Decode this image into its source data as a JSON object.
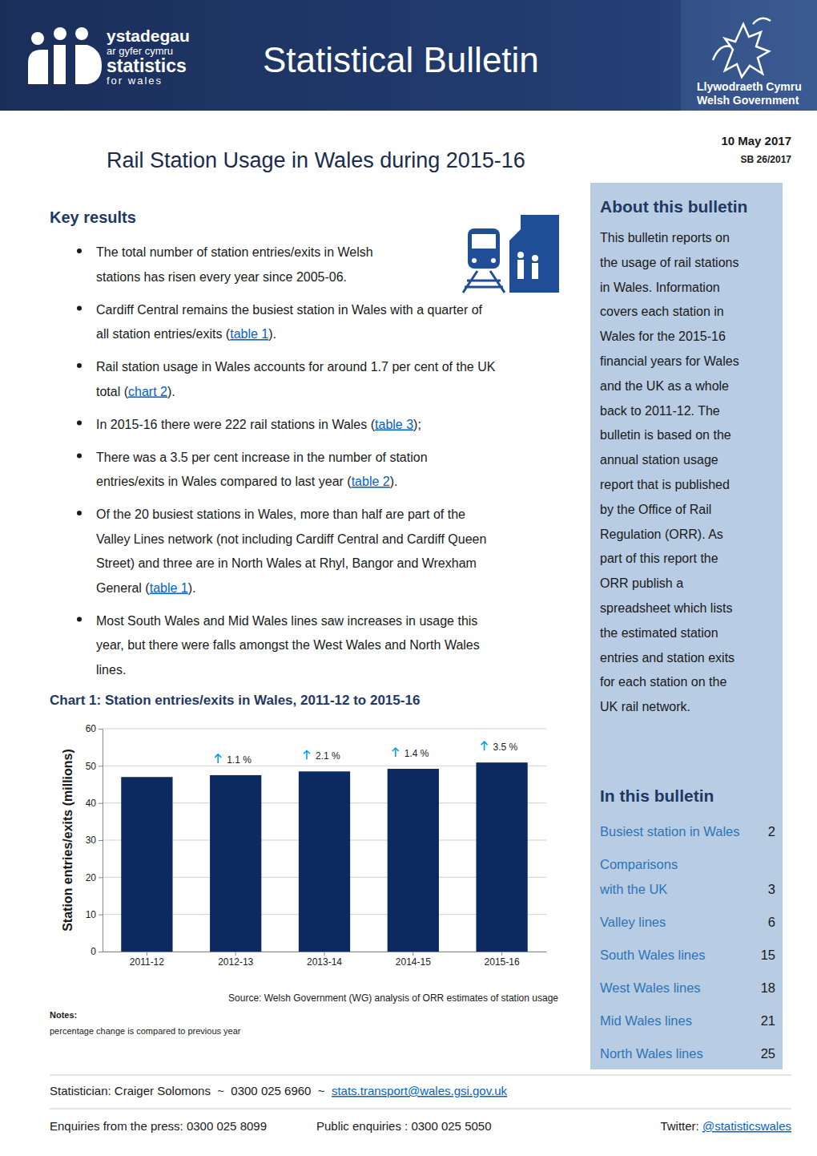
{
  "header": {
    "logo_lines": [
      "ystadegau",
      "ar gyfer cymru",
      "statistics",
      "for wales"
    ],
    "title": "Statistical Bulletin",
    "government": [
      "Llywodraeth Cymru",
      "Welsh Government"
    ]
  },
  "date": "10 May 2017",
  "reference": "SB 26/2017",
  "title": "Rail Station Usage in Wales during 2015-16",
  "key_results": {
    "heading": "Key results",
    "bullets": [
      [
        "The total number of station entries/exits in Welsh",
        "stations has risen every year since 2005-06."
      ],
      [
        "Cardiff Central remains the busiest station in Wales with a quarter of",
        [
          {
            "text": "all station entries/exits ("
          },
          {
            "link": "table 1"
          },
          {
            "text": ")."
          }
        ]
      ],
      [
        "Rail station usage in Wales accounts for around 1.7 per cent of the UK",
        [
          {
            "text": "total ("
          },
          {
            "link": "chart 2"
          },
          {
            "text": ")."
          }
        ]
      ],
      [
        [
          {
            "text": "In 2015-16 there were 222 rail stations in Wales ("
          },
          {
            "link": "table 3"
          },
          {
            "text": ");"
          }
        ]
      ],
      [
        "There was a 3.5 per cent increase in the number of station",
        [
          {
            "text": "entries/exits in Wales compared to last year ("
          },
          {
            "link": "table 2"
          },
          {
            "text": ")."
          }
        ]
      ],
      [
        "Of the 20 busiest stations in Wales, more than half are part of the",
        "Valley Lines network (not including Cardiff Central and Cardiff Queen",
        "Street) and three are in North Wales at Rhyl, Bangor and Wrexham",
        [
          {
            "text": "General ("
          },
          {
            "link": "table 1"
          },
          {
            "text": ")."
          }
        ]
      ],
      [
        "Most South Wales and Mid Wales lines saw increases in usage this",
        "year, but there were falls amongst the West Wales and North Wales",
        "lines."
      ]
    ]
  },
  "about": {
    "heading": "About this bulletin",
    "lines": [
      "This bulletin reports on",
      "the usage of rail stations",
      "in Wales. Information",
      "covers each station in",
      "Wales for the 2015-16",
      "financial years for Wales",
      "and the UK as a whole",
      "back to 2011-12. The",
      "bulletin is based on the",
      "annual station usage",
      "report that is published",
      "by the Office of Rail",
      "Regulation (ORR). As",
      "part of this report the",
      "ORR publish a",
      "spreadsheet which lists",
      "the estimated station",
      "entries and station exits",
      "for each station on the",
      "UK rail network."
    ]
  },
  "contents": {
    "heading": "In this bulletin",
    "items": [
      {
        "lines": [
          "Busiest station in Wales"
        ],
        "page": 2
      },
      {
        "lines": [
          "Comparisons",
          "with the UK"
        ],
        "page": 3
      },
      {
        "lines": [
          "Valley lines"
        ],
        "page": 6
      },
      {
        "lines": [
          "South Wales lines"
        ],
        "page": 15
      },
      {
        "lines": [
          "West Wales lines"
        ],
        "page": 18
      },
      {
        "lines": [
          "Mid Wales lines"
        ],
        "page": 21
      },
      {
        "lines": [
          "North Wales lines"
        ],
        "page": 25
      }
    ]
  },
  "chart_data": {
    "type": "bar",
    "title": "Chart 1: Station entries/exits in Wales, 2011-12 to 2015-16",
    "y_label": "Station entries/exits (millions)",
    "categories": [
      "2011-12",
      "2012-13",
      "2013-14",
      "2014-15",
      "2015-16"
    ],
    "values": [
      47.0,
      47.5,
      48.5,
      49.2,
      50.9
    ],
    "color": "#0c2a5f",
    "ylim": [
      0,
      60
    ],
    "yticks": [
      0,
      10,
      20,
      30,
      40,
      50,
      60
    ],
    "grid": true,
    "annotations": [
      {
        "x": "2012-13",
        "text": "1.1 %"
      },
      {
        "x": "2013-14",
        "text": "2.1 %"
      },
      {
        "x": "2014-15",
        "text": "1.4 %"
      },
      {
        "x": "2015-16",
        "text": "3.5 %"
      }
    ],
    "source": "Source: Welsh Government (WG) analysis of ORR estimates of station usage",
    "notes_heading": "Notes:",
    "notes": "percentage change is compared to previous year"
  },
  "footer": {
    "statistician": "Statistician: Craiger Solomons  ~  0300 025 6960  ~  ",
    "email": "stats.transport@wales.gsi.gov.uk",
    "press": "Enquiries from the press: 0300 025 8099",
    "public": "Public enquiries : 0300 025 5050",
    "twitter_label": "Twitter: ",
    "twitter_handle": "@statisticswales"
  }
}
